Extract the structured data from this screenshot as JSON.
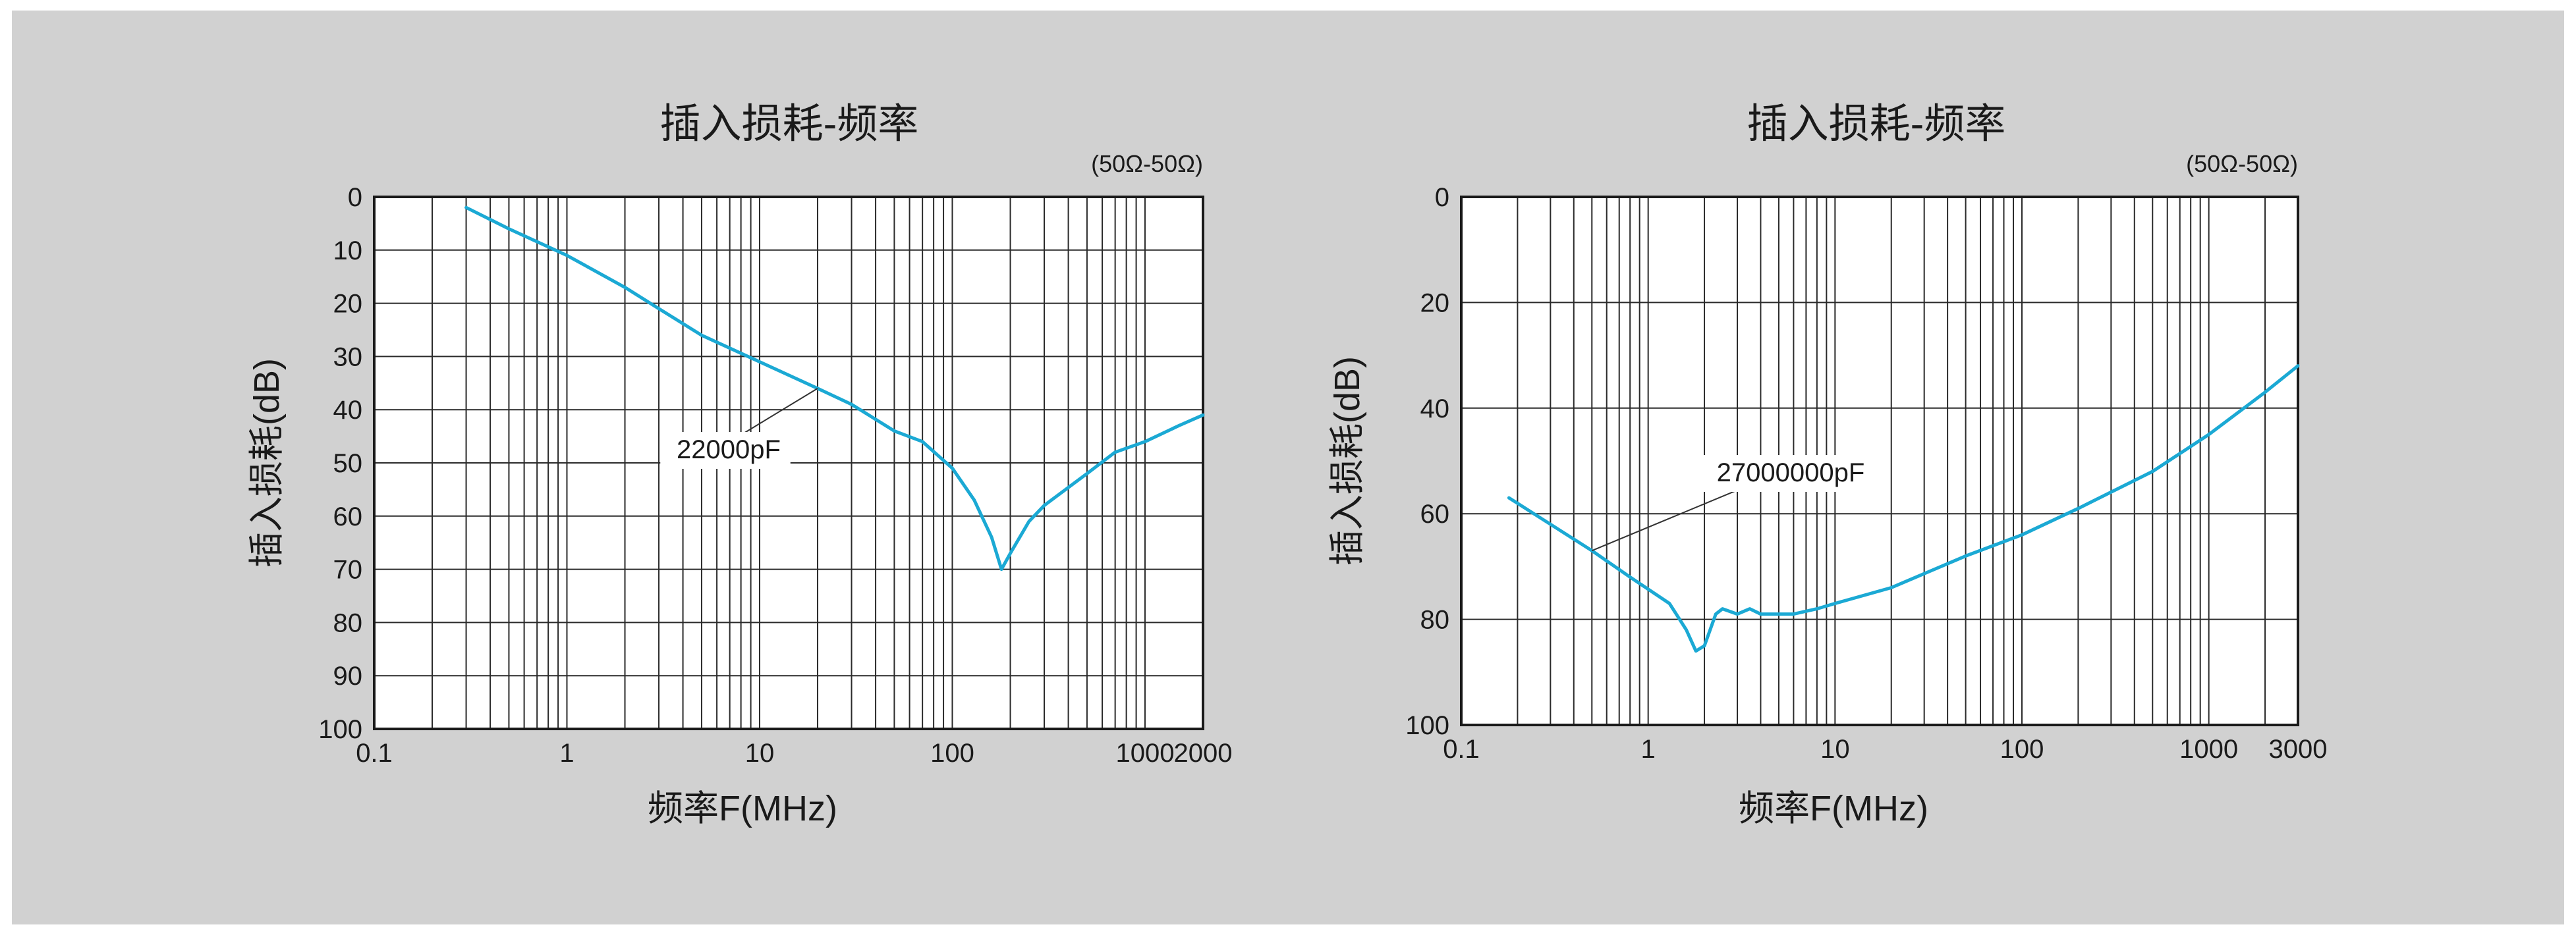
{
  "chart_data": [
    {
      "type": "line",
      "title": "插入损耗-频率",
      "note": "(50Ω-50Ω)",
      "xlabel": "频率F(MHz)",
      "ylabel": "插入损耗(dB)",
      "x_scale": "log",
      "xlim": [
        0.1,
        2000
      ],
      "ylim": [
        0,
        100
      ],
      "y_inverted": true,
      "x_ticks": [
        "0.1",
        "1",
        "10",
        "100",
        "1000",
        "2000"
      ],
      "x_tick_values": [
        0.1,
        1,
        10,
        100,
        1000,
        2000
      ],
      "y_ticks": [
        "0",
        "10",
        "20",
        "30",
        "40",
        "50",
        "60",
        "70",
        "80",
        "90",
        "100"
      ],
      "y_tick_values": [
        0,
        10,
        20,
        30,
        40,
        50,
        60,
        70,
        80,
        90,
        100
      ],
      "grid": true,
      "series": [
        {
          "name": "22000pF",
          "color": "#1ba9d4",
          "x": [
            0.3,
            0.5,
            1,
            2,
            3,
            5,
            10,
            20,
            30,
            50,
            70,
            100,
            130,
            160,
            180,
            200,
            250,
            300,
            500,
            700,
            1000,
            1500,
            2000
          ],
          "y": [
            2,
            6,
            11,
            17,
            21,
            26,
            31,
            36,
            39,
            44,
            46,
            51,
            57,
            64,
            70,
            67,
            61,
            58,
            52,
            48,
            46,
            43,
            41
          ]
        }
      ]
    },
    {
      "type": "line",
      "title": "插入损耗-频率",
      "note": "(50Ω-50Ω)",
      "xlabel": "频率F(MHz)",
      "ylabel": "插入损耗(dB)",
      "x_scale": "log",
      "xlim": [
        0.1,
        3000
      ],
      "ylim": [
        0,
        100
      ],
      "y_inverted": true,
      "x_ticks": [
        "0.1",
        "1",
        "10",
        "100",
        "1000",
        "3000"
      ],
      "x_tick_values": [
        0.1,
        1,
        10,
        100,
        1000,
        3000
      ],
      "y_ticks": [
        "0",
        "20",
        "40",
        "60",
        "80",
        "100"
      ],
      "y_tick_values": [
        0,
        20,
        40,
        60,
        80,
        100
      ],
      "grid": true,
      "series": [
        {
          "name": "27000000pF",
          "color": "#1ba9d4",
          "x": [
            0.18,
            0.3,
            0.5,
            0.8,
            1.3,
            1.6,
            1.8,
            2.0,
            2.3,
            2.5,
            3,
            3.5,
            4,
            5,
            6,
            8,
            10,
            20,
            50,
            100,
            200,
            500,
            1000,
            2000,
            3000
          ],
          "y": [
            57,
            62,
            67,
            72,
            77,
            82,
            86,
            85,
            79,
            78,
            79,
            78,
            79,
            79,
            79,
            78,
            77,
            74,
            68,
            64,
            59,
            52,
            45,
            37,
            32
          ]
        }
      ]
    }
  ]
}
